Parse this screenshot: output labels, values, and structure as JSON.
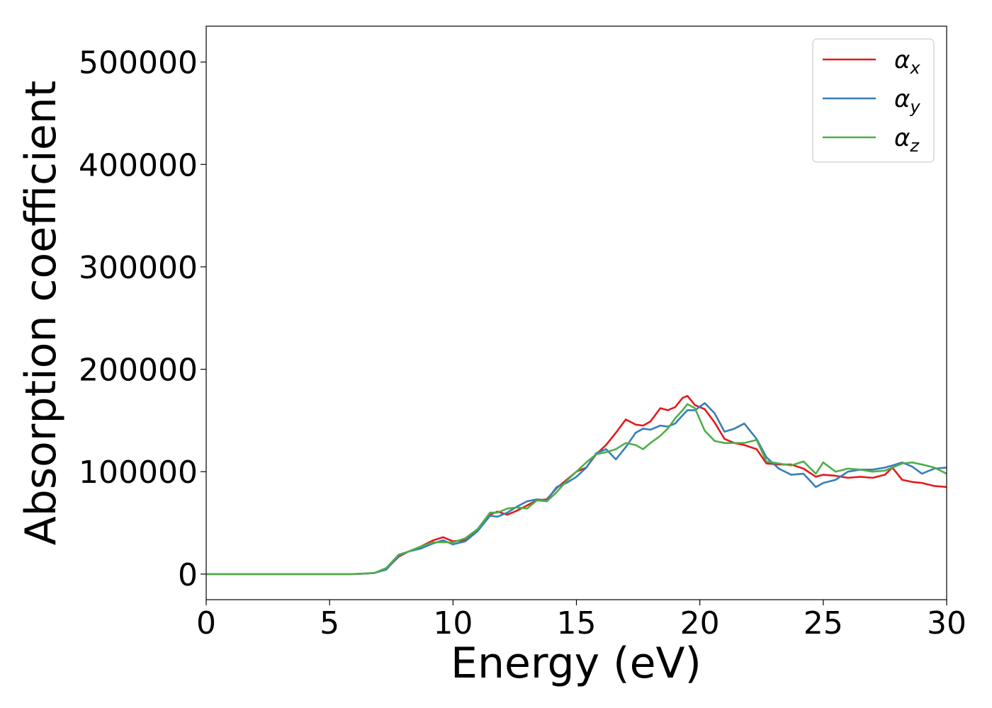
{
  "chart_data": {
    "type": "line",
    "title": "",
    "xlabel": "Energy (eV)",
    "ylabel": "Absorption coefficient",
    "xlim": [
      0,
      30
    ],
    "ylim": [
      -25000,
      535000
    ],
    "xticks": [
      "0",
      "5",
      "10",
      "15",
      "20",
      "25",
      "30"
    ],
    "yticks": [
      "0",
      "100000",
      "200000",
      "300000",
      "400000",
      "500000"
    ],
    "grid": false,
    "legend_position": "top-right",
    "series": [
      {
        "name": "α",
        "subscript": "x",
        "color": "#e41a1c",
        "x": [
          0,
          6,
          6.8,
          7.3,
          7.8,
          8.2,
          8.7,
          9.2,
          9.6,
          10.0,
          10.5,
          11.0,
          11.5,
          11.8,
          12.2,
          12.6,
          13.0,
          13.4,
          13.8,
          14.2,
          14.6,
          15.0,
          15.4,
          15.8,
          16.2,
          16.6,
          17.0,
          17.4,
          17.7,
          18.0,
          18.4,
          18.7,
          19.0,
          19.3,
          19.5,
          19.8,
          20.2,
          20.6,
          21.0,
          21.4,
          21.8,
          22.3,
          22.7,
          23.2,
          23.7,
          24.2,
          24.7,
          25.0,
          25.5,
          26.0,
          26.5,
          27.0,
          27.5,
          27.8,
          28.2,
          28.6,
          29.0,
          29.5,
          30.0
        ],
        "values": [
          0,
          0,
          1000,
          5000,
          17000,
          22000,
          27000,
          33000,
          36000,
          32000,
          33000,
          43000,
          58000,
          61000,
          58000,
          62000,
          67000,
          72000,
          73000,
          84000,
          92000,
          100000,
          104000,
          117000,
          126000,
          138000,
          151000,
          146000,
          145000,
          149000,
          162000,
          160000,
          163000,
          172000,
          174000,
          165000,
          161000,
          148000,
          132000,
          128000,
          126000,
          122000,
          108000,
          107000,
          107000,
          103000,
          95000,
          97000,
          96000,
          94000,
          95000,
          94000,
          97000,
          104000,
          92000,
          90000,
          89000,
          86000,
          85000
        ]
      },
      {
        "name": "α",
        "subscript": "y",
        "color": "#377eb8",
        "x": [
          0,
          6,
          6.8,
          7.3,
          7.8,
          8.2,
          8.7,
          9.2,
          9.6,
          10.0,
          10.5,
          11.0,
          11.5,
          11.8,
          12.2,
          12.6,
          13.0,
          13.4,
          13.8,
          14.2,
          14.6,
          15.0,
          15.4,
          15.8,
          16.2,
          16.6,
          17.0,
          17.4,
          17.7,
          18.0,
          18.4,
          18.7,
          19.0,
          19.3,
          19.5,
          19.8,
          20.2,
          20.6,
          21.0,
          21.4,
          21.8,
          22.3,
          22.7,
          23.2,
          23.7,
          24.2,
          24.7,
          25.0,
          25.5,
          26.0,
          26.5,
          27.0,
          27.5,
          27.8,
          28.2,
          28.6,
          29.0,
          29.5,
          30.0
        ],
        "values": [
          0,
          0,
          1000,
          4500,
          18000,
          22000,
          25000,
          30000,
          33000,
          29000,
          32000,
          42000,
          57000,
          56000,
          60000,
          66000,
          71000,
          73000,
          72000,
          85000,
          89000,
          95000,
          104000,
          118000,
          122000,
          112000,
          124000,
          138000,
          142000,
          141000,
          145000,
          144000,
          147000,
          155000,
          160000,
          160000,
          167000,
          157000,
          139000,
          142000,
          147000,
          132000,
          114000,
          103000,
          97000,
          98000,
          85000,
          89000,
          92000,
          100000,
          102000,
          102000,
          104000,
          106000,
          109000,
          105000,
          98000,
          103000,
          104000
        ]
      },
      {
        "name": "α",
        "subscript": "z",
        "color": "#4daf4a",
        "x": [
          0,
          6,
          6.8,
          7.3,
          7.8,
          8.2,
          8.7,
          9.2,
          9.6,
          10.0,
          10.5,
          11.0,
          11.5,
          11.8,
          12.2,
          12.6,
          13.0,
          13.4,
          13.8,
          14.2,
          14.6,
          15.0,
          15.4,
          15.8,
          16.2,
          16.6,
          17.0,
          17.4,
          17.7,
          18.0,
          18.4,
          18.7,
          19.0,
          19.3,
          19.5,
          19.8,
          20.2,
          20.6,
          21.0,
          21.4,
          21.8,
          22.3,
          22.7,
          23.2,
          23.7,
          24.2,
          24.7,
          25.0,
          25.5,
          26.0,
          26.5,
          27.0,
          27.5,
          27.8,
          28.2,
          28.6,
          29.0,
          29.5,
          30.0
        ],
        "values": [
          0,
          0,
          1000,
          6000,
          19000,
          22000,
          27000,
          31000,
          31000,
          31000,
          35000,
          44000,
          60000,
          60000,
          64000,
          65000,
          64000,
          72000,
          71000,
          80000,
          91000,
          100000,
          109000,
          117000,
          119000,
          122000,
          128000,
          126000,
          122000,
          128000,
          135000,
          142000,
          152000,
          160000,
          166000,
          162000,
          140000,
          130000,
          128000,
          128000,
          128000,
          131000,
          110000,
          108000,
          106000,
          110000,
          98000,
          109000,
          100000,
          103000,
          102000,
          100000,
          101000,
          104000,
          108000,
          109000,
          107000,
          104000,
          98000
        ]
      }
    ]
  }
}
